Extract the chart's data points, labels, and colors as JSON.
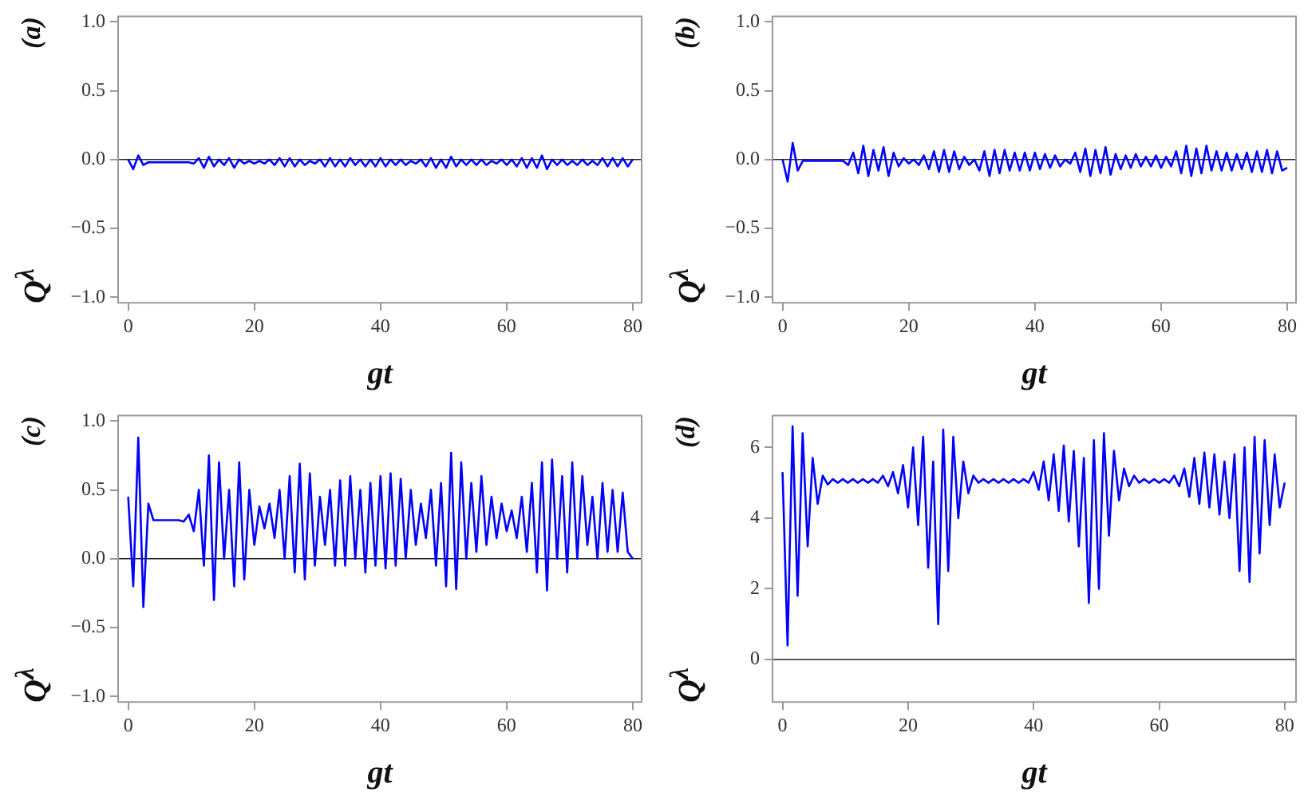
{
  "chart_data": [
    {
      "type": "line",
      "title": "(a)",
      "xlabel": "gt",
      "ylabel": "Q$^{λ}$",
      "xlim": [
        -1.6,
        81.4
      ],
      "ylim": [
        -1.04,
        1.04
      ],
      "xticks": [
        0,
        20,
        40,
        60,
        80
      ],
      "yticks": [
        {
          "value": -1,
          "label": "−1.0"
        },
        {
          "value": -0.5,
          "label": "−0.5"
        },
        {
          "value": 0,
          "label": "0.0"
        },
        {
          "value": 0.5,
          "label": "0.5"
        },
        {
          "value": 1,
          "label": "1.0"
        }
      ],
      "ref_lines": [
        {
          "axis": "y",
          "value": 0
        }
      ],
      "x": [
        0,
        0.8,
        1.6,
        2.4,
        3.2,
        4,
        4.8,
        5.6,
        6.4,
        7.2,
        8,
        8.8,
        9.6,
        10.4,
        11.2,
        12,
        12.8,
        13.6,
        14.4,
        15.2,
        16,
        16.8,
        17.6,
        18.4,
        19.2,
        20,
        20.8,
        21.6,
        22.4,
        23.2,
        24,
        24.8,
        25.6,
        26.4,
        27.2,
        28,
        28.8,
        29.6,
        30.4,
        31.2,
        32,
        32.8,
        33.6,
        34.4,
        35.2,
        36,
        36.8,
        37.6,
        38.4,
        39.2,
        40,
        40.8,
        41.6,
        42.4,
        43.2,
        44,
        44.8,
        45.6,
        46.4,
        47.2,
        48,
        48.8,
        49.6,
        50.4,
        51.2,
        52,
        52.8,
        53.6,
        54.4,
        55.2,
        56,
        56.8,
        57.6,
        58.4,
        59.2,
        60,
        60.8,
        61.6,
        62.4,
        63.2,
        64,
        64.8,
        65.6,
        66.4,
        67.2,
        68,
        68.8,
        69.6,
        70.4,
        71.2,
        72,
        72.8,
        73.6,
        74.4,
        75.2,
        76,
        76.8,
        77.6,
        78.4,
        79.2,
        80
      ],
      "series": [
        {
          "color": "#0000ff",
          "values": [
            0.0,
            -0.07,
            0.03,
            -0.04,
            -0.02,
            -0.02,
            -0.02,
            -0.02,
            -0.02,
            -0.02,
            -0.02,
            -0.02,
            -0.02,
            -0.03,
            0.01,
            -0.06,
            0.02,
            -0.05,
            0.0,
            -0.04,
            0.01,
            -0.06,
            0.0,
            -0.03,
            -0.01,
            -0.03,
            -0.01,
            -0.03,
            0.0,
            -0.04,
            0.01,
            -0.05,
            0.01,
            -0.05,
            0.0,
            -0.04,
            -0.01,
            -0.03,
            0.0,
            -0.05,
            0.01,
            -0.05,
            0.0,
            -0.05,
            0.01,
            -0.04,
            0.0,
            -0.05,
            0.0,
            -0.05,
            0.01,
            -0.05,
            0.0,
            -0.04,
            0.0,
            -0.04,
            -0.01,
            -0.03,
            0.0,
            -0.05,
            0.01,
            -0.06,
            0.0,
            -0.06,
            0.02,
            -0.05,
            0.0,
            -0.04,
            0.0,
            -0.04,
            0.0,
            -0.04,
            -0.01,
            -0.03,
            0.0,
            -0.04,
            0.0,
            -0.05,
            0.01,
            -0.06,
            0.01,
            -0.06,
            0.03,
            -0.07,
            0.0,
            -0.04,
            0.0,
            -0.04,
            -0.01,
            -0.04,
            0.0,
            -0.04,
            -0.01,
            -0.04,
            0.01,
            -0.05,
            0.01,
            -0.05,
            0.01,
            -0.05,
            0.0
          ]
        }
      ]
    },
    {
      "type": "line",
      "title": "(b)",
      "xlabel": "gt",
      "ylabel": "Q$^{λ}$",
      "xlim": [
        -1.6,
        81.4
      ],
      "ylim": [
        -1.04,
        1.04
      ],
      "xticks": [
        0,
        20,
        40,
        60,
        80
      ],
      "yticks": [
        {
          "value": -1,
          "label": "−1.0"
        },
        {
          "value": -0.5,
          "label": "−0.5"
        },
        {
          "value": 0,
          "label": "0.0"
        },
        {
          "value": 0.5,
          "label": "0.5"
        },
        {
          "value": 1,
          "label": "1.0"
        }
      ],
      "ref_lines": [
        {
          "axis": "y",
          "value": 0
        }
      ],
      "x": [
        0,
        0.8,
        1.6,
        2.4,
        3.2,
        4,
        4.8,
        5.6,
        6.4,
        7.2,
        8,
        8.8,
        9.6,
        10.4,
        11.2,
        12,
        12.8,
        13.6,
        14.4,
        15.2,
        16,
        16.8,
        17.6,
        18.4,
        19.2,
        20,
        20.8,
        21.6,
        22.4,
        23.2,
        24,
        24.8,
        25.6,
        26.4,
        27.2,
        28,
        28.8,
        29.6,
        30.4,
        31.2,
        32,
        32.8,
        33.6,
        34.4,
        35.2,
        36,
        36.8,
        37.6,
        38.4,
        39.2,
        40,
        40.8,
        41.6,
        42.4,
        43.2,
        44,
        44.8,
        45.6,
        46.4,
        47.2,
        48,
        48.8,
        49.6,
        50.4,
        51.2,
        52,
        52.8,
        53.6,
        54.4,
        55.2,
        56,
        56.8,
        57.6,
        58.4,
        59.2,
        60,
        60.8,
        61.6,
        62.4,
        63.2,
        64,
        64.8,
        65.6,
        66.4,
        67.2,
        68,
        68.8,
        69.6,
        70.4,
        71.2,
        72,
        72.8,
        73.6,
        74.4,
        75.2,
        76,
        76.8,
        77.6,
        78.4,
        79.2,
        80
      ],
      "series": [
        {
          "color": "#0000ff",
          "values": [
            0.0,
            -0.16,
            0.12,
            -0.08,
            -0.01,
            -0.01,
            -0.01,
            -0.01,
            -0.01,
            -0.01,
            -0.01,
            -0.01,
            -0.01,
            -0.04,
            0.05,
            -0.1,
            0.1,
            -0.12,
            0.07,
            -0.08,
            0.09,
            -0.12,
            0.05,
            -0.05,
            0.01,
            -0.03,
            0.0,
            -0.04,
            0.03,
            -0.07,
            0.06,
            -0.09,
            0.07,
            -0.09,
            0.06,
            -0.07,
            0.02,
            -0.04,
            0.0,
            -0.08,
            0.06,
            -0.12,
            0.07,
            -0.1,
            0.07,
            -0.08,
            0.05,
            -0.08,
            0.05,
            -0.08,
            0.05,
            -0.07,
            0.04,
            -0.06,
            0.03,
            -0.05,
            0.0,
            -0.03,
            0.05,
            -0.09,
            0.08,
            -0.12,
            0.07,
            -0.1,
            0.09,
            -0.11,
            0.04,
            -0.07,
            0.03,
            -0.06,
            0.04,
            -0.05,
            0.02,
            -0.05,
            0.03,
            -0.06,
            0.02,
            -0.05,
            0.06,
            -0.1,
            0.1,
            -0.12,
            0.08,
            -0.1,
            0.1,
            -0.08,
            0.06,
            -0.08,
            0.05,
            -0.08,
            0.04,
            -0.07,
            0.05,
            -0.09,
            0.06,
            -0.09,
            0.07,
            -0.1,
            0.06,
            -0.08,
            -0.06
          ]
        }
      ]
    },
    {
      "type": "line",
      "title": "(c)",
      "xlabel": "gt",
      "ylabel": "Q$^{λ}$",
      "xlim": [
        -1.6,
        81.4
      ],
      "ylim": [
        -1.04,
        1.04
      ],
      "xticks": [
        0,
        20,
        40,
        60,
        80
      ],
      "yticks": [
        {
          "value": -1,
          "label": "−1.0"
        },
        {
          "value": -0.5,
          "label": "−0.5"
        },
        {
          "value": 0,
          "label": "0.0"
        },
        {
          "value": 0.5,
          "label": "0.5"
        },
        {
          "value": 1,
          "label": "1.0"
        }
      ],
      "ref_lines": [
        {
          "axis": "y",
          "value": 0
        }
      ],
      "x": [
        0,
        0.8,
        1.6,
        2.4,
        3.2,
        4,
        4.8,
        5.6,
        6.4,
        7.2,
        8,
        8.8,
        9.6,
        10.4,
        11.2,
        12,
        12.8,
        13.6,
        14.4,
        15.2,
        16,
        16.8,
        17.6,
        18.4,
        19.2,
        20,
        20.8,
        21.6,
        22.4,
        23.2,
        24,
        24.8,
        25.6,
        26.4,
        27.2,
        28,
        28.8,
        29.6,
        30.4,
        31.2,
        32,
        32.8,
        33.6,
        34.4,
        35.2,
        36,
        36.8,
        37.6,
        38.4,
        39.2,
        40,
        40.8,
        41.6,
        42.4,
        43.2,
        44,
        44.8,
        45.6,
        46.4,
        47.2,
        48,
        48.8,
        49.6,
        50.4,
        51.2,
        52,
        52.8,
        53.6,
        54.4,
        55.2,
        56,
        56.8,
        57.6,
        58.4,
        59.2,
        60,
        60.8,
        61.6,
        62.4,
        63.2,
        64,
        64.8,
        65.6,
        66.4,
        67.2,
        68,
        68.8,
        69.6,
        70.4,
        71.2,
        72,
        72.8,
        73.6,
        74.4,
        75.2,
        76,
        76.8,
        77.6,
        78.4,
        79.2,
        80
      ],
      "series": [
        {
          "color": "#0000ff",
          "values": [
            0.45,
            -0.2,
            0.88,
            -0.35,
            0.4,
            0.28,
            0.28,
            0.28,
            0.28,
            0.28,
            0.28,
            0.27,
            0.32,
            0.2,
            0.5,
            -0.05,
            0.75,
            -0.3,
            0.7,
            0.0,
            0.5,
            -0.2,
            0.7,
            -0.15,
            0.5,
            0.1,
            0.38,
            0.22,
            0.4,
            0.15,
            0.5,
            0.0,
            0.6,
            -0.1,
            0.69,
            -0.15,
            0.62,
            -0.05,
            0.45,
            0.1,
            0.5,
            -0.05,
            0.57,
            -0.05,
            0.6,
            0.0,
            0.5,
            -0.1,
            0.55,
            -0.05,
            0.6,
            -0.07,
            0.62,
            -0.05,
            0.58,
            0.0,
            0.5,
            0.1,
            0.4,
            0.15,
            0.5,
            -0.05,
            0.55,
            -0.2,
            0.77,
            -0.22,
            0.7,
            0.0,
            0.55,
            0.05,
            0.6,
            0.1,
            0.45,
            0.15,
            0.4,
            0.2,
            0.35,
            0.15,
            0.45,
            0.05,
            0.55,
            -0.1,
            0.7,
            -0.23,
            0.72,
            0.0,
            0.6,
            -0.1,
            0.7,
            0.0,
            0.6,
            0.1,
            0.45,
            0.0,
            0.55,
            0.05,
            0.5,
            0.05,
            0.48,
            0.05,
            0.0
          ]
        }
      ]
    },
    {
      "type": "line",
      "title": "(d)",
      "xlabel": "gt",
      "ylabel": "Q$^{λ}$",
      "xlim": [
        -1.6,
        81.8
      ],
      "ylim": [
        -1.2,
        6.9
      ],
      "xticks": [
        0,
        20,
        40,
        60,
        80
      ],
      "yticks": [
        0,
        2,
        4,
        6
      ],
      "ref_lines": [
        {
          "axis": "y",
          "value": 0
        }
      ],
      "x": [
        0,
        0.8,
        1.6,
        2.4,
        3.2,
        4,
        4.8,
        5.6,
        6.4,
        7.2,
        8,
        8.8,
        9.6,
        10.4,
        11.2,
        12,
        12.8,
        13.6,
        14.4,
        15.2,
        16,
        16.8,
        17.6,
        18.4,
        19.2,
        20,
        20.8,
        21.6,
        22.4,
        23.2,
        24,
        24.8,
        25.6,
        26.4,
        27.2,
        28,
        28.8,
        29.6,
        30.4,
        31.2,
        32,
        32.8,
        33.6,
        34.4,
        35.2,
        36,
        36.8,
        37.6,
        38.4,
        39.2,
        40,
        40.8,
        41.6,
        42.4,
        43.2,
        44,
        44.8,
        45.6,
        46.4,
        47.2,
        48,
        48.8,
        49.6,
        50.4,
        51.2,
        52,
        52.8,
        53.6,
        54.4,
        55.2,
        56,
        56.8,
        57.6,
        58.4,
        59.2,
        60,
        60.8,
        61.6,
        62.4,
        63.2,
        64,
        64.8,
        65.6,
        66.4,
        67.2,
        68,
        68.8,
        69.6,
        70.4,
        71.2,
        72,
        72.8,
        73.6,
        74.4,
        75.2,
        76,
        76.8,
        77.6,
        78.4,
        79.2,
        80
      ],
      "series": [
        {
          "color": "#0000ff",
          "values": [
            5.3,
            0.4,
            6.6,
            1.8,
            6.4,
            3.2,
            5.7,
            4.4,
            5.2,
            4.95,
            5.1,
            5.0,
            5.1,
            5.0,
            5.1,
            5.0,
            5.1,
            5.0,
            5.1,
            5.0,
            5.2,
            4.9,
            5.3,
            4.7,
            5.5,
            4.3,
            6.0,
            3.8,
            6.3,
            2.6,
            5.6,
            1.0,
            6.5,
            2.5,
            6.3,
            4.0,
            5.6,
            4.7,
            5.2,
            5.0,
            5.1,
            5.0,
            5.1,
            5.0,
            5.1,
            5.0,
            5.1,
            5.0,
            5.1,
            5.0,
            5.3,
            4.8,
            5.6,
            4.5,
            5.8,
            4.2,
            6.05,
            3.9,
            5.9,
            3.2,
            5.7,
            1.6,
            6.2,
            2.0,
            6.4,
            3.5,
            5.9,
            4.5,
            5.4,
            4.9,
            5.2,
            5.0,
            5.1,
            5.0,
            5.1,
            5.0,
            5.1,
            5.0,
            5.2,
            4.9,
            5.4,
            4.6,
            5.7,
            4.4,
            5.85,
            4.3,
            5.8,
            4.1,
            5.6,
            4.0,
            5.8,
            2.5,
            6.0,
            2.2,
            6.3,
            3.0,
            6.2,
            3.8,
            5.8,
            4.3,
            5.0
          ]
        }
      ]
    }
  ]
}
